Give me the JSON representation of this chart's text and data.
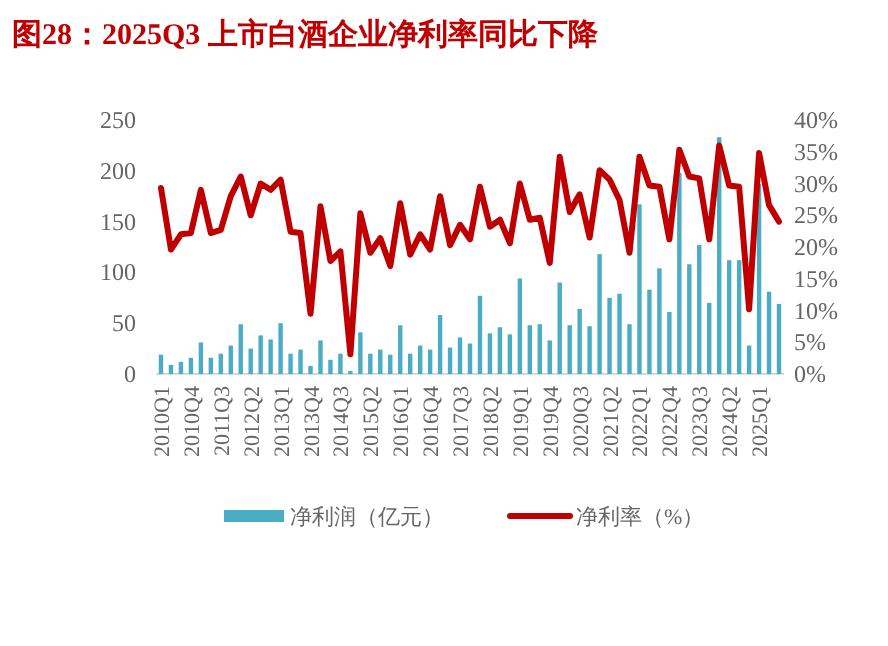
{
  "chart_data": {
    "type": "bar",
    "title": "图28：2025Q3 上市白酒企业净利率同比下降",
    "categories": [
      "2010Q1",
      null,
      null,
      "2010Q4",
      null,
      null,
      "2011Q3",
      null,
      null,
      "2012Q2",
      null,
      null,
      "2013Q1",
      null,
      null,
      "2013Q4",
      null,
      null,
      "2014Q3",
      null,
      null,
      "2015Q2",
      null,
      null,
      "2016Q1",
      null,
      null,
      "2016Q4",
      null,
      null,
      "2017Q3",
      null,
      null,
      "2018Q2",
      null,
      null,
      "2019Q1",
      null,
      null,
      "2019Q4",
      null,
      null,
      "2020Q3",
      null,
      null,
      "2021Q2",
      null,
      null,
      "2022Q1",
      null,
      null,
      "2022Q4",
      null,
      null,
      "2023Q3",
      null,
      null,
      "2024Q2",
      null,
      null,
      "2025Q1",
      null,
      null
    ],
    "series": [
      {
        "name": "净利润（亿元）",
        "color": "#4bacc6",
        "values": [
          19,
          9,
          12,
          16,
          31,
          16,
          20,
          28,
          49,
          25,
          38,
          34,
          50,
          20,
          24,
          8,
          33,
          14,
          20,
          3,
          41,
          20,
          24,
          19,
          48,
          20,
          28,
          24,
          58,
          26,
          36,
          30,
          77,
          40,
          46,
          39,
          94,
          48,
          49,
          33,
          90,
          48,
          64,
          47,
          118,
          75,
          79,
          49,
          167,
          83,
          104,
          61,
          198,
          108,
          127,
          70,
          233,
          112,
          112,
          28,
          187,
          81,
          69
        ]
      },
      {
        "name": "净利率（%）",
        "color": "#c00000",
        "type": "line",
        "axis": "y2",
        "values": [
          29.3,
          19.6,
          22,
          22.2,
          29,
          22.2,
          22.7,
          28,
          31.1,
          25,
          30,
          29,
          30.6,
          22.4,
          22.2,
          9.5,
          26.4,
          17.8,
          19.3,
          3.1,
          25.3,
          19.1,
          21.4,
          17,
          26.9,
          18.8,
          22,
          19.6,
          28,
          20.3,
          23.5,
          21.2,
          29.5,
          23.2,
          24.3,
          20.6,
          30,
          24.3,
          24.6,
          17.5,
          34.2,
          25.5,
          28.3,
          21.5,
          32.1,
          30.6,
          27.4,
          19.1,
          34.2,
          29.7,
          29.5,
          21.2,
          35.3,
          31.1,
          30.8,
          21.2,
          36,
          29.7,
          29.5,
          10.2,
          34.8,
          26.6,
          24
        ]
      }
    ],
    "ylim": [
      0,
      250
    ],
    "yticks": [
      0,
      50,
      100,
      150,
      200,
      250
    ],
    "y2lim": [
      0,
      40
    ],
    "y2ticks": [
      {
        "value": 0,
        "label": "0%"
      },
      {
        "value": 5,
        "label": "5%"
      },
      {
        "value": 10,
        "label": "10%"
      },
      {
        "value": 15,
        "label": "15%"
      },
      {
        "value": 20,
        "label": "20%"
      },
      {
        "value": 25,
        "label": "25%"
      },
      {
        "value": 30,
        "label": "30%"
      },
      {
        "value": 35,
        "label": "35%"
      },
      {
        "value": 40,
        "label": "40%"
      }
    ],
    "legend": "bottom",
    "grid": false
  }
}
